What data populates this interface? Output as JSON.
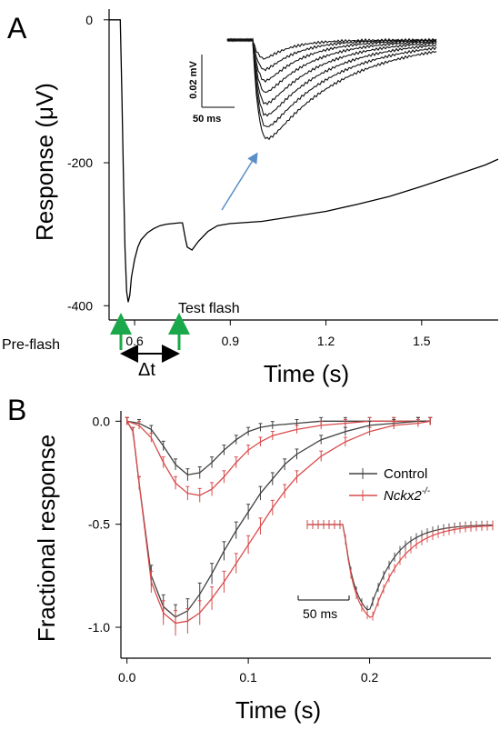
{
  "panels": {
    "a": {
      "letter": "A",
      "ylabel": "Response (μV)",
      "xlabel": "Time (s)",
      "prefash_label": "Pre-flash",
      "test_flash_label": "Test flash",
      "delta_t_label": "Δt",
      "inset_scale": {
        "voltage": "0.02 mV",
        "time": "50 ms"
      }
    },
    "b": {
      "letter": "B",
      "ylabel": "Fractional response",
      "xlabel": "Time (s)",
      "legend": {
        "control": "Control",
        "nckx2_base": "Nckx2",
        "nckx2_sup": "-/-"
      },
      "inset_scale": {
        "time": "50 ms"
      }
    }
  },
  "colors": {
    "control": "#404040",
    "nckx2": "#d94b4b",
    "flash_arrow": "#1aa84a",
    "callout_arrow": "#5b8fc7"
  },
  "chart_data": [
    {
      "type": "line",
      "panel": "A",
      "xlabel": "Time (s)",
      "ylabel": "Response (μV)",
      "xlim": [
        0.52,
        1.74
      ],
      "ylim": [
        -420,
        15
      ],
      "xticks": [
        0.6,
        0.9,
        1.2,
        1.5
      ],
      "yticks": [
        0,
        -200,
        -400
      ],
      "series": [
        {
          "x": [
            0.52,
            0.54,
            0.555,
            0.56,
            0.565,
            0.57,
            0.575,
            0.58,
            0.585,
            0.59,
            0.6,
            0.61,
            0.62,
            0.64,
            0.66,
            0.68,
            0.7,
            0.72,
            0.74,
            0.75,
            0.76,
            0.765,
            0.78,
            0.8,
            0.83,
            0.86,
            0.9,
            1.0,
            1.1,
            1.2,
            1.3,
            1.4,
            1.5,
            1.6,
            1.7,
            1.74
          ],
          "y": [
            0,
            0,
            0,
            -100,
            -220,
            -320,
            -380,
            -395,
            -385,
            -360,
            -335,
            -318,
            -308,
            -298,
            -292,
            -288,
            -286,
            -285,
            -284,
            -284,
            -308,
            -318,
            -322,
            -310,
            -296,
            -288,
            -285,
            -282,
            -275,
            -268,
            -258,
            -247,
            -233,
            -218,
            -203,
            -195
          ]
        }
      ]
    },
    {
      "type": "line",
      "panel": "A-inset",
      "series_count": 8
    },
    {
      "type": "line",
      "panel": "B",
      "xlabel": "Time (s)",
      "ylabel": "Fractional response",
      "xlim": [
        -0.005,
        0.3
      ],
      "ylim": [
        -1.15,
        0.05
      ],
      "xticks": [
        0.0,
        0.1,
        0.2
      ],
      "yticks": [
        0.0,
        -0.5,
        -1.0
      ],
      "legend": [
        "Control",
        "Nckx2-/-"
      ],
      "series": [
        {
          "name": "Control",
          "group": "dim",
          "x": [
            0.0,
            0.01,
            0.02,
            0.03,
            0.04,
            0.05,
            0.06,
            0.07,
            0.08,
            0.09,
            0.1,
            0.11,
            0.12,
            0.14,
            0.16,
            0.18,
            0.2,
            0.22,
            0.24,
            0.25
          ],
          "y": [
            0.0,
            -0.01,
            -0.04,
            -0.12,
            -0.21,
            -0.26,
            -0.25,
            -0.2,
            -0.14,
            -0.09,
            -0.05,
            -0.03,
            -0.02,
            -0.01,
            0.0,
            0.0,
            0.0,
            0.0,
            0.0,
            0.0
          ]
        },
        {
          "name": "Nckx2-/-",
          "group": "dim",
          "x": [
            0.0,
            0.01,
            0.02,
            0.03,
            0.04,
            0.05,
            0.06,
            0.07,
            0.08,
            0.09,
            0.1,
            0.11,
            0.12,
            0.14,
            0.16,
            0.18,
            0.2,
            0.22,
            0.24,
            0.25
          ],
          "y": [
            0.0,
            -0.02,
            -0.08,
            -0.2,
            -0.3,
            -0.35,
            -0.36,
            -0.33,
            -0.27,
            -0.2,
            -0.14,
            -0.1,
            -0.07,
            -0.04,
            -0.02,
            -0.01,
            0.0,
            0.0,
            0.0,
            0.0
          ]
        },
        {
          "name": "Control",
          "group": "bright",
          "x": [
            0.0,
            0.005,
            0.01,
            0.02,
            0.03,
            0.04,
            0.05,
            0.06,
            0.07,
            0.08,
            0.09,
            0.1,
            0.11,
            0.12,
            0.13,
            0.14,
            0.16,
            0.18,
            0.2,
            0.22,
            0.24,
            0.25
          ],
          "y": [
            0.0,
            -0.05,
            -0.3,
            -0.75,
            -0.9,
            -0.95,
            -0.92,
            -0.84,
            -0.74,
            -0.63,
            -0.53,
            -0.44,
            -0.35,
            -0.28,
            -0.21,
            -0.16,
            -0.09,
            -0.05,
            -0.02,
            -0.01,
            0.0,
            0.0
          ]
        },
        {
          "name": "Nckx2-/-",
          "group": "bright",
          "x": [
            0.0,
            0.005,
            0.01,
            0.02,
            0.03,
            0.04,
            0.05,
            0.06,
            0.07,
            0.08,
            0.09,
            0.1,
            0.11,
            0.12,
            0.13,
            0.14,
            0.16,
            0.18,
            0.2,
            0.22,
            0.24,
            0.25
          ],
          "y": [
            0.0,
            -0.05,
            -0.3,
            -0.78,
            -0.93,
            -0.98,
            -0.97,
            -0.93,
            -0.86,
            -0.78,
            -0.69,
            -0.6,
            -0.51,
            -0.42,
            -0.34,
            -0.27,
            -0.17,
            -0.1,
            -0.05,
            -0.02,
            -0.01,
            0.0
          ]
        }
      ]
    },
    {
      "type": "line",
      "panel": "B-inset",
      "legend": [
        "Control",
        "Nckx2-/-"
      ]
    }
  ]
}
